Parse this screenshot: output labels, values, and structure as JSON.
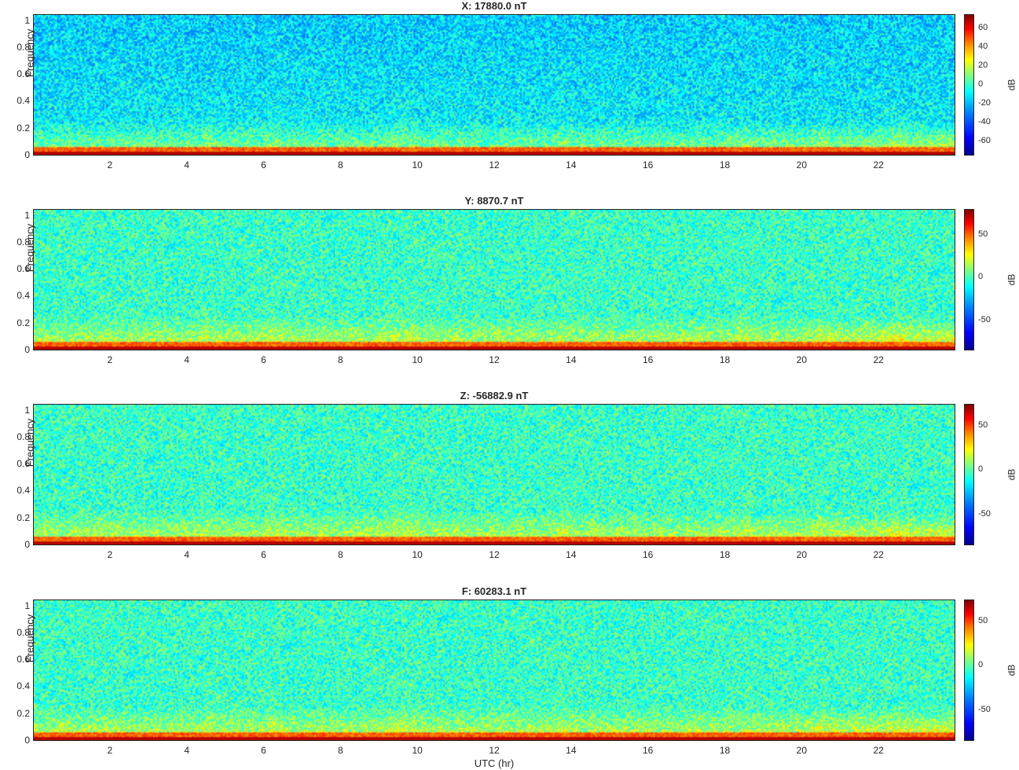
{
  "chart_data": [
    {
      "type": "heatmap",
      "title": "X: 17880.0 nT",
      "xlabel": "",
      "ylabel": "Frequency",
      "xlim": [
        0,
        24
      ],
      "ylim": [
        0,
        1.05
      ],
      "x_ticks": [
        "2",
        "4",
        "6",
        "8",
        "10",
        "12",
        "14",
        "16",
        "18",
        "20",
        "22"
      ],
      "y_ticks": [
        "0",
        "0.2",
        "0.4",
        "0.6",
        "0.8",
        "1"
      ],
      "colorbar": {
        "label": "dB",
        "range": [
          -75,
          75
        ],
        "ticks": [
          "60",
          "40",
          "20",
          "0",
          "-20",
          "-40",
          "-60"
        ],
        "tick_values": [
          60,
          40,
          20,
          0,
          -20,
          -40,
          -60
        ]
      }
    },
    {
      "type": "heatmap",
      "title": "Y: 8870.7 nT",
      "xlabel": "",
      "ylabel": "Frequency",
      "xlim": [
        0,
        24
      ],
      "ylim": [
        0,
        1.05
      ],
      "x_ticks": [
        "2",
        "4",
        "6",
        "8",
        "10",
        "12",
        "14",
        "16",
        "18",
        "20",
        "22"
      ],
      "y_ticks": [
        "0",
        "0.2",
        "0.4",
        "0.6",
        "0.8",
        "1"
      ],
      "colorbar": {
        "label": "dB",
        "range": [
          -85,
          80
        ],
        "ticks": [
          "50",
          "0",
          "-50"
        ],
        "tick_values": [
          50,
          0,
          -50
        ]
      }
    },
    {
      "type": "heatmap",
      "title": "Z: -56882.9 nT",
      "xlabel": "",
      "ylabel": "Frequency",
      "xlim": [
        0,
        24
      ],
      "ylim": [
        0,
        1.05
      ],
      "x_ticks": [
        "2",
        "4",
        "6",
        "8",
        "10",
        "12",
        "14",
        "16",
        "18",
        "20",
        "22"
      ],
      "y_ticks": [
        "0",
        "0.2",
        "0.4",
        "0.6",
        "0.8",
        "1"
      ],
      "colorbar": {
        "label": "dB",
        "range": [
          -85,
          75
        ],
        "ticks": [
          "50",
          "0",
          "-50"
        ],
        "tick_values": [
          50,
          0,
          -50
        ]
      }
    },
    {
      "type": "heatmap",
      "title": "F: 60283.1 nT",
      "xlabel": "UTC (hr)",
      "ylabel": "Frequency",
      "xlim": [
        0,
        24
      ],
      "ylim": [
        0,
        1.05
      ],
      "x_ticks": [
        "2",
        "4",
        "6",
        "8",
        "10",
        "12",
        "14",
        "16",
        "18",
        "20",
        "22"
      ],
      "y_ticks": [
        "0",
        "0.2",
        "0.4",
        "0.6",
        "0.8",
        "1"
      ],
      "colorbar": {
        "label": "dB",
        "range": [
          -85,
          75
        ],
        "ticks": [
          "50",
          "0",
          "-50"
        ],
        "tick_values": [
          50,
          0,
          -50
        ]
      }
    }
  ]
}
